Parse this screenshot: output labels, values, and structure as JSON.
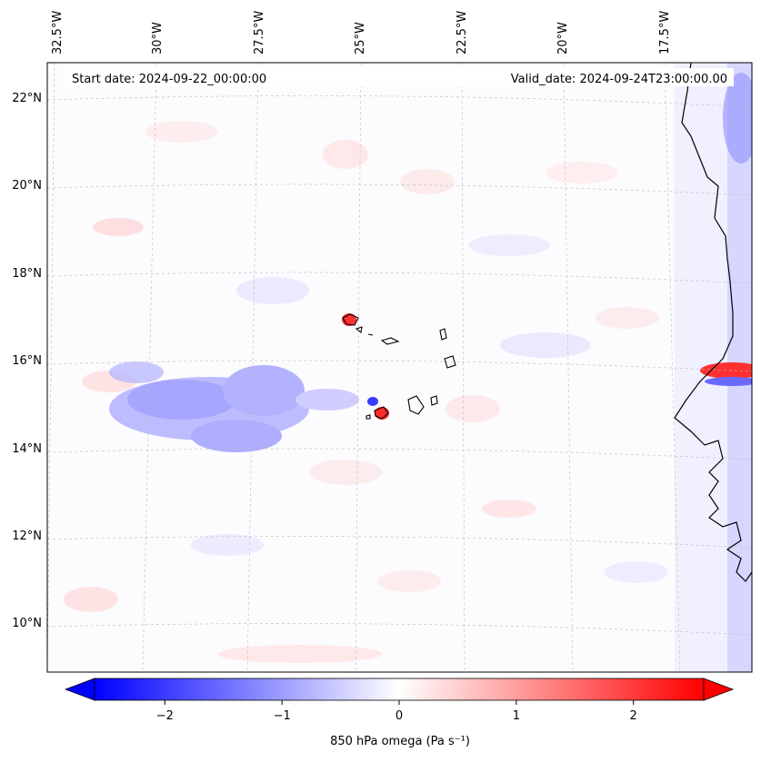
{
  "header": {
    "start_date": "Start date: 2024-09-22_00:00:00",
    "valid_date": "Valid_date: 2024-09-24T23:00:00.00"
  },
  "map": {
    "projection": "Lambert conformal",
    "lon_labels": [
      "32.5°W",
      "30°W",
      "27.5°W",
      "25°W",
      "22.5°W",
      "20°W",
      "17.5°W"
    ],
    "lat_labels": [
      "22°N",
      "20°N",
      "18°N",
      "16°N",
      "14°N",
      "12°N",
      "10°N"
    ],
    "field": "850 hPa omega",
    "colormap": "bwr",
    "colors": {
      "negative": "#0000ff",
      "neutral": "#ffffff",
      "positive": "#ff0000"
    }
  },
  "colorbar": {
    "label": "850 hPa omega (Pa s⁻¹)",
    "ticks": [
      "−2",
      "−1",
      "0",
      "1",
      "2"
    ],
    "tick_values": [
      -2,
      -1,
      0,
      1,
      2
    ],
    "range": [
      -2.6,
      2.6
    ],
    "extend": "both"
  },
  "chart_data": {
    "type": "heatmap",
    "title": "",
    "variable": "850 hPa omega",
    "units": "Pa s⁻¹",
    "vmin": -2.6,
    "vmax": 2.6,
    "lon_range": [
      -33,
      -15
    ],
    "lat_range": [
      9,
      23
    ],
    "features": [
      {
        "name": "strong ascent near Senegal coast",
        "lon": -15.5,
        "lat": 15.5,
        "value": 2.0
      },
      {
        "name": "ascent west of Santo Antao",
        "lon": -25.2,
        "lat": 16.9,
        "value": 1.8
      },
      {
        "name": "ascent near Fogo",
        "lon": -24.4,
        "lat": 14.8,
        "value": 2.2
      },
      {
        "name": "broad subsidence band",
        "lon": -28.5,
        "lat": 14.5,
        "value": -0.8
      }
    ]
  }
}
